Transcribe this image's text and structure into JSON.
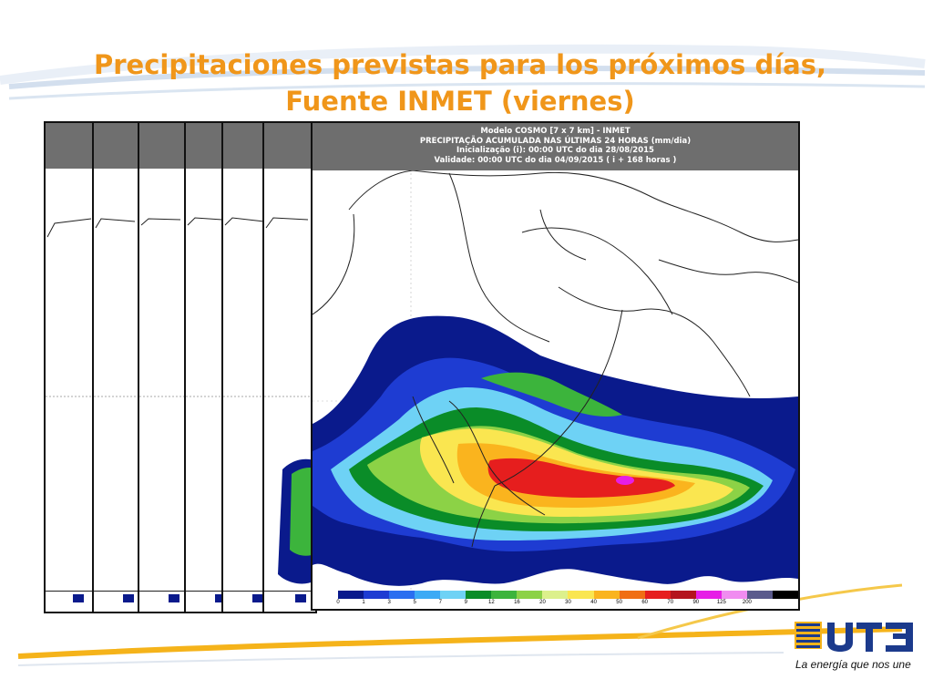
{
  "slide": {
    "title_line1": "Precipitaciones previstas para los próximos días,",
    "title_line2": "Fuente INMET (viernes)"
  },
  "map": {
    "header_line1": "Modelo COSMO [7 x 7 km] - INMET",
    "header_line2": "PRECIPITAÇÃO ACUMULADA NAS ÚLTIMAS 24 HORAS (mm/dia)",
    "header_line3": "Inicialização (i): 00:00 UTC do dia 28/08/2015",
    "header_line4": "Validade: 00:00 UTC do dia 04/09/2015 ( i + 168 horas )",
    "colorbar": {
      "labels": [
        "0",
        "1",
        "3",
        "5",
        "7",
        "9",
        "12",
        "16",
        "20",
        "30",
        "40",
        "50",
        "60",
        "70",
        "90",
        "125",
        "200"
      ],
      "colors": [
        "#ffffff",
        "#0a1a8c",
        "#1e3cd2",
        "#2a6ef0",
        "#3caaf5",
        "#6ed2f5",
        "#0a8c28",
        "#3cb43c",
        "#8cd246",
        "#dcf08c",
        "#fae650",
        "#fab41e",
        "#f06e14",
        "#e61e1e",
        "#b4141e",
        "#e61ee6",
        "#f08cf0",
        "#5a5a8c",
        "#000000"
      ]
    }
  },
  "branding": {
    "logo_text": "UTE",
    "tagline": "La energía que nos une"
  },
  "colors": {
    "title": "#f0961a",
    "accent_swoosh": "#f5b31a"
  }
}
